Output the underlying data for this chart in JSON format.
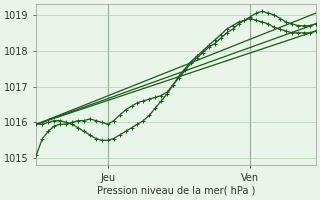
{
  "title": "Pression niveau de la mer( hPa )",
  "bg_color": "#e8f5e8",
  "grid_color": "#b0d0b0",
  "line_color": "#1a5c1a",
  "ylim": [
    1014.8,
    1019.3
  ],
  "xlim": [
    0,
    47
  ],
  "yticks": [
    1015,
    1016,
    1017,
    1018,
    1019
  ],
  "xtick_positions": [
    12,
    36
  ],
  "xtick_labels": [
    "Jeu",
    "Ven"
  ],
  "vlines": [
    12,
    36
  ],
  "straight_lines": [
    [
      [
        0,
        1015.95
      ],
      [
        47,
        1018.55
      ]
    ],
    [
      [
        0,
        1015.95
      ],
      [
        47,
        1018.75
      ]
    ],
    [
      [
        0,
        1015.95
      ],
      [
        47,
        1019.05
      ]
    ]
  ],
  "noisy_series": [
    [
      1015.1,
      1015.55,
      1015.75,
      1015.9,
      1015.95,
      1015.95,
      1016.0,
      1016.05,
      1016.05,
      1016.1,
      1016.05,
      1016.0,
      1015.95,
      1016.05,
      1016.2,
      1016.35,
      1016.45,
      1016.55,
      1016.6,
      1016.65,
      1016.7,
      1016.75,
      1016.85,
      1017.05,
      1017.25,
      1017.45,
      1017.65,
      1017.8,
      1017.95,
      1018.1,
      1018.2,
      1018.35,
      1018.5,
      1018.6,
      1018.75,
      1018.85,
      1018.95,
      1019.05,
      1019.1,
      1019.05,
      1019.0,
      1018.9,
      1018.8,
      1018.75,
      1018.7,
      1018.7,
      1018.7,
      1018.75
    ],
    [
      1015.95,
      1015.95,
      1016.0,
      1016.05,
      1016.05,
      1016.0,
      1015.95,
      1015.85,
      1015.75,
      1015.65,
      1015.55,
      1015.5,
      1015.5,
      1015.55,
      1015.65,
      1015.75,
      1015.85,
      1015.95,
      1016.05,
      1016.2,
      1016.4,
      1016.6,
      1016.8,
      1017.05,
      1017.3,
      1017.5,
      1017.7,
      1017.85,
      1018.0,
      1018.15,
      1018.3,
      1018.45,
      1018.6,
      1018.7,
      1018.8,
      1018.85,
      1018.9,
      1018.85,
      1018.8,
      1018.75,
      1018.65,
      1018.6,
      1018.55,
      1018.5,
      1018.5,
      1018.5,
      1018.5,
      1018.55
    ]
  ],
  "marker_size": 2.5,
  "line_width": 0.9
}
